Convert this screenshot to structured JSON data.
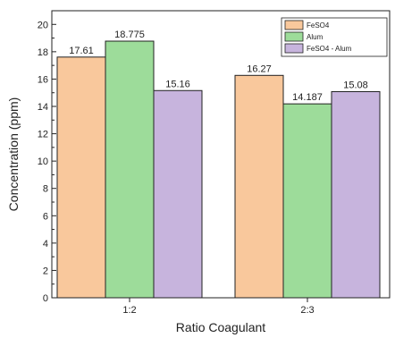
{
  "chart_data": {
    "type": "bar",
    "title": "",
    "xlabel": "Ratio Coagulant",
    "ylabel": "Concentration (ppm)",
    "ylim": [
      0,
      21
    ],
    "y_ticks": [
      0,
      2,
      4,
      6,
      8,
      10,
      12,
      14,
      16,
      18,
      20
    ],
    "categories": [
      "1:2",
      "2:3"
    ],
    "series": [
      {
        "name": "FeSO4",
        "values": [
          17.61,
          16.27
        ],
        "labels": [
          "17.61",
          "16.27"
        ],
        "color": "#f9c89c"
      },
      {
        "name": "Alum",
        "values": [
          18.775,
          14.187
        ],
        "labels": [
          "18.775",
          "14.187"
        ],
        "color": "#9ddc9a"
      },
      {
        "name": "FeSO4 - Alum",
        "values": [
          15.16,
          15.08
        ],
        "labels": [
          "15.16",
          "15.08"
        ],
        "color": "#c7b4dd"
      }
    ],
    "grid": false,
    "legend_position": "top-right"
  }
}
